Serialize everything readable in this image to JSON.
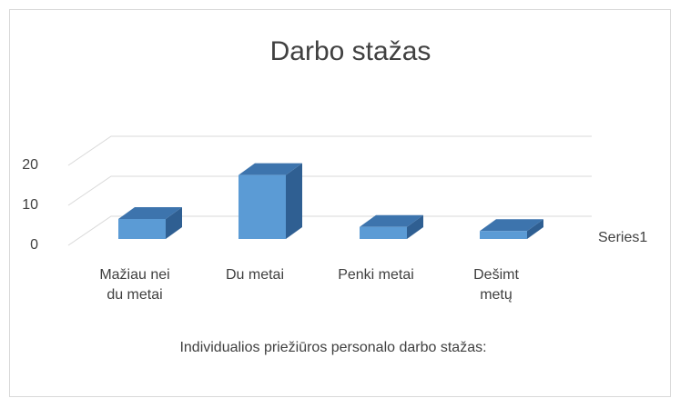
{
  "chart_data": {
    "type": "bar3d",
    "title": "Darbo stažas",
    "x_label": "Individualios priežiūros personalo darbo stažas:",
    "categories": [
      "Mažiau nei du metai",
      "Du metai",
      "Penki metai",
      "Dešimt metų"
    ],
    "series": [
      {
        "name": "Series1",
        "color": "#5b9bd5",
        "values": [
          5,
          16,
          3,
          2
        ]
      }
    ],
    "ylim": [
      0,
      20
    ],
    "yticks": [
      0,
      10,
      20
    ],
    "grid": true
  }
}
